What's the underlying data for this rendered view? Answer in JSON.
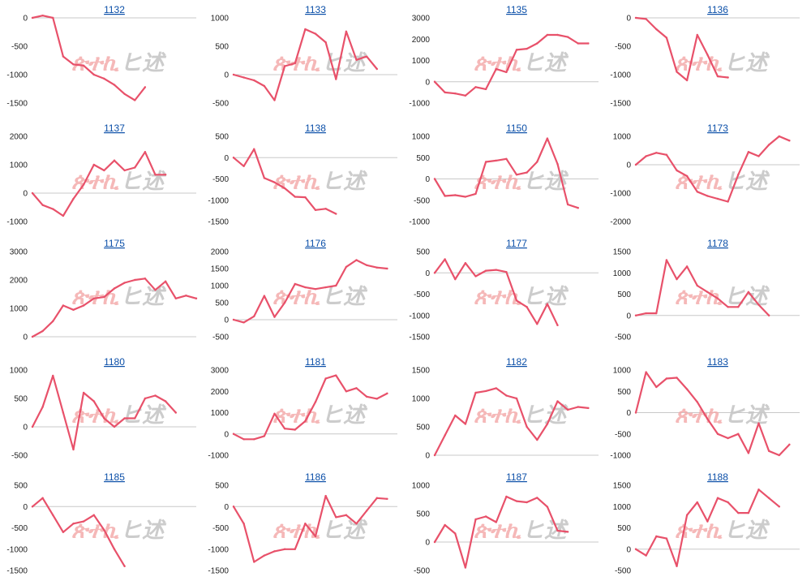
{
  "watermark": {
    "left": "ጵተኪ",
    "right": "ヒ述"
  },
  "colors": {
    "line": "#e8516a",
    "axis": "#c8c8c8",
    "title": "#0b4fa8",
    "watermark_left": "#f2a6a6",
    "watermark_right": "#c7c7c7"
  },
  "chart_data": [
    {
      "type": "line",
      "title": "1132",
      "ylim": [
        -1500,
        0
      ],
      "yticks": [
        0,
        -500,
        -1000,
        -1500
      ],
      "values": [
        0,
        40,
        0,
        -680,
        -820,
        -840,
        -1000,
        -1070,
        -1180,
        -1340,
        -1450,
        -1220
      ]
    },
    {
      "type": "line",
      "title": "1133",
      "ylim": [
        -500,
        1000
      ],
      "yticks": [
        1000,
        500,
        0,
        -500
      ],
      "values": [
        0,
        -50,
        -100,
        -200,
        -450,
        150,
        200,
        800,
        720,
        570,
        -80,
        760,
        260,
        320,
        100
      ]
    },
    {
      "type": "line",
      "title": "1135",
      "ylim": [
        -1000,
        3000
      ],
      "yticks": [
        3000,
        2000,
        1000,
        0,
        -1000
      ],
      "values": [
        0,
        -500,
        -550,
        -650,
        -250,
        -350,
        600,
        450,
        1500,
        1550,
        1800,
        2200,
        2200,
        2100,
        1800,
        1800
      ]
    },
    {
      "type": "line",
      "title": "1136",
      "ylim": [
        -1500,
        0
      ],
      "yticks": [
        0,
        -500,
        -1000,
        -1500
      ],
      "values": [
        0,
        -20,
        -200,
        -350,
        -950,
        -1100,
        -300,
        -650,
        -1030,
        -1050
      ]
    },
    {
      "type": "line",
      "title": "1137",
      "ylim": [
        -1000,
        2000
      ],
      "yticks": [
        2000,
        1000,
        0,
        -1000
      ],
      "values": [
        0,
        -420,
        -560,
        -800,
        -200,
        300,
        1000,
        800,
        1150,
        800,
        900,
        1450,
        650,
        650
      ]
    },
    {
      "type": "line",
      "title": "1138",
      "ylim": [
        -1500,
        500
      ],
      "yticks": [
        500,
        0,
        -500,
        -1000,
        -1500
      ],
      "values": [
        0,
        -200,
        200,
        -480,
        -580,
        -720,
        -920,
        -930,
        -1230,
        -1200,
        -1320
      ]
    },
    {
      "type": "line",
      "title": "1150",
      "ylim": [
        -1000,
        1000
      ],
      "yticks": [
        1000,
        500,
        0,
        -500,
        -1000
      ],
      "values": [
        0,
        -400,
        -380,
        -420,
        -350,
        400,
        430,
        470,
        100,
        150,
        400,
        950,
        350,
        -600,
        -680
      ]
    },
    {
      "type": "line",
      "title": "1173",
      "ylim": [
        -2000,
        1000
      ],
      "yticks": [
        1000,
        0,
        -1000,
        -2000
      ],
      "values": [
        0,
        300,
        420,
        350,
        -200,
        -400,
        -950,
        -1100,
        -1200,
        -1300,
        -350,
        450,
        300,
        700,
        1000,
        850
      ]
    },
    {
      "type": "line",
      "title": "1175",
      "ylim": [
        0,
        3000
      ],
      "yticks": [
        3000,
        2000,
        1000,
        0
      ],
      "values": [
        0,
        200,
        550,
        1100,
        950,
        1100,
        1350,
        1400,
        1700,
        1900,
        2000,
        2050,
        1650,
        1950,
        1350,
        1450,
        1350
      ]
    },
    {
      "type": "line",
      "title": "1176",
      "ylim": [
        -500,
        2000
      ],
      "yticks": [
        2000,
        1500,
        1000,
        500,
        0,
        -500
      ],
      "values": [
        0,
        -80,
        100,
        700,
        80,
        500,
        1050,
        950,
        900,
        950,
        1000,
        1550,
        1750,
        1600,
        1530,
        1500
      ]
    },
    {
      "type": "line",
      "title": "1177",
      "ylim": [
        -1500,
        500
      ],
      "yticks": [
        500,
        0,
        -500,
        -1000,
        -1500
      ],
      "values": [
        0,
        320,
        -150,
        230,
        -80,
        50,
        70,
        20,
        -650,
        -800,
        -1200,
        -730,
        -1230
      ]
    },
    {
      "type": "line",
      "title": "1178",
      "ylim": [
        -500,
        1500
      ],
      "yticks": [
        1500,
        1000,
        500,
        0,
        -500
      ],
      "values": [
        0,
        50,
        50,
        1300,
        850,
        1150,
        700,
        550,
        400,
        200,
        200,
        550,
        250,
        0
      ]
    },
    {
      "type": "line",
      "title": "1180",
      "ylim": [
        -500,
        1000
      ],
      "yticks": [
        1000,
        500,
        0,
        -500
      ],
      "values": [
        0,
        350,
        900,
        250,
        -400,
        600,
        450,
        150,
        0,
        150,
        150,
        500,
        550,
        450,
        250
      ]
    },
    {
      "type": "line",
      "title": "1181",
      "ylim": [
        -1000,
        3000
      ],
      "yticks": [
        3000,
        2000,
        1000,
        0,
        -1000
      ],
      "values": [
        0,
        -250,
        -250,
        -100,
        950,
        250,
        200,
        600,
        1500,
        2600,
        2750,
        2000,
        2150,
        1750,
        1650,
        1900
      ]
    },
    {
      "type": "line",
      "title": "1182",
      "ylim": [
        0,
        1500
      ],
      "yticks": [
        1500,
        1000,
        500,
        0
      ],
      "values": [
        0,
        350,
        700,
        550,
        1100,
        1130,
        1180,
        1050,
        1000,
        500,
        270,
        550,
        950,
        800,
        850,
        830
      ]
    },
    {
      "type": "line",
      "title": "1183",
      "ylim": [
        -1000,
        1000
      ],
      "yticks": [
        1000,
        500,
        0,
        -500,
        -1000
      ],
      "values": [
        0,
        950,
        600,
        800,
        820,
        550,
        250,
        -150,
        -500,
        -600,
        -500,
        -950,
        -250,
        -900,
        -1000,
        -750
      ]
    },
    {
      "type": "line",
      "title": "1185",
      "ylim": [
        -1500,
        500
      ],
      "yticks": [
        500,
        0,
        -500,
        -1000,
        -1500
      ],
      "values": [
        0,
        200,
        -200,
        -600,
        -400,
        -350,
        -200,
        -550,
        -1000,
        -1400
      ]
    },
    {
      "type": "line",
      "title": "1186",
      "ylim": [
        -1500,
        500
      ],
      "yticks": [
        500,
        0,
        -500,
        -1000,
        -1500
      ],
      "values": [
        0,
        -400,
        -1300,
        -1150,
        -1050,
        -1000,
        -1000,
        -400,
        -700,
        250,
        -250,
        -200,
        -400,
        -100,
        200,
        180
      ]
    },
    {
      "type": "line",
      "title": "1187",
      "ylim": [
        -500,
        1000
      ],
      "yticks": [
        1000,
        500,
        0,
        -500
      ],
      "values": [
        0,
        300,
        150,
        -450,
        400,
        450,
        350,
        800,
        720,
        700,
        780,
        620,
        200,
        180
      ]
    },
    {
      "type": "line",
      "title": "1188",
      "ylim": [
        -500,
        1500
      ],
      "yticks": [
        1500,
        1000,
        500,
        0,
        -500
      ],
      "values": [
        0,
        -150,
        300,
        250,
        -400,
        800,
        1100,
        650,
        1200,
        1100,
        850,
        850,
        1400,
        1200,
        1000
      ]
    }
  ]
}
